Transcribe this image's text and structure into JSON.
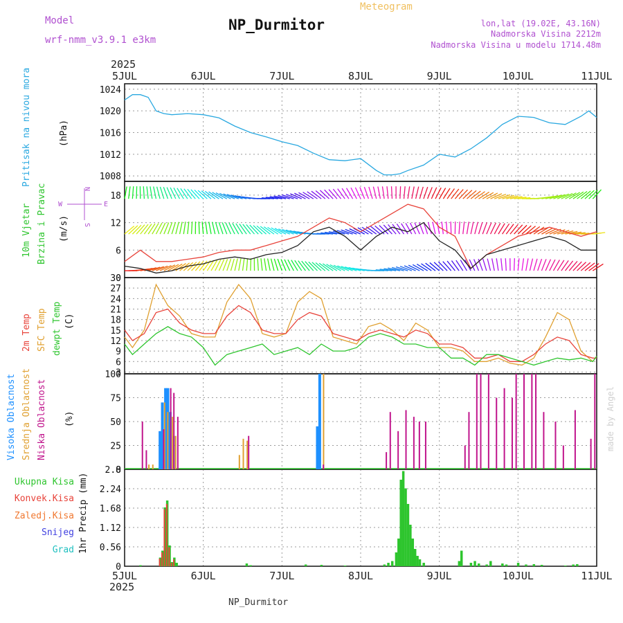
{
  "header": {
    "model_label": "Model",
    "model_value": "wrf-nmm_v3.9.1  e3km",
    "title": "NP_Durmitor",
    "subtitle": "Meteogram",
    "coords": "lon,lat (19.02E, 43.16N)",
    "altitude": "Nadmorska Visina 2212m",
    "model_altitude": "Nadmorska Visina u modelu 1714.48m",
    "year_top": "2025",
    "year_bottom": "2025",
    "footer": "NP_Durmitor",
    "credit": "made by Angel"
  },
  "colors": {
    "pressure": "#29a8e0",
    "temp2m": "#e8433a",
    "sfctemp": "#e0a030",
    "dewpt": "#2ec52e",
    "cloud_high": "#1e90ff",
    "cloud_mid": "#e0a030",
    "cloud_low": "#c0148c",
    "precip_total": "#2ec52e",
    "precip_conv": "#e8433a",
    "precip_frz": "#f07830",
    "snow": "#4040e0",
    "hail": "#20c0c0",
    "wind_speed": "#222222",
    "gust": "#e8433a"
  },
  "chart_data": [
    {
      "type": "line",
      "panel": "pressure",
      "ylabel_main": "Pritisak na nivou mora",
      "unit": "(hPa)",
      "x_labels": [
        "5JUL",
        "6JUL",
        "7JUL",
        "8JUL",
        "9JUL",
        "10JUL",
        "11JUL"
      ],
      "ylim": [
        1007,
        1025
      ],
      "yticks": [
        "1008",
        "1012",
        "1016",
        "1020",
        "1024"
      ],
      "series": [
        {
          "name": "Pritisak",
          "x": [
            0,
            0.1,
            0.2,
            0.3,
            0.4,
            0.5,
            0.6,
            0.8,
            1.0,
            1.2,
            1.4,
            1.6,
            1.8,
            2.0,
            2.2,
            2.4,
            2.6,
            2.8,
            3.0,
            3.2,
            3.3,
            3.4,
            3.5,
            3.6,
            3.8,
            4.0,
            4.2,
            4.4,
            4.6,
            4.8,
            5.0,
            5.2,
            5.4,
            5.6,
            5.8,
            5.9,
            6.0
          ],
          "values": [
            1022,
            1023,
            1023,
            1022.5,
            1020,
            1019.5,
            1019.3,
            1019.5,
            1019.3,
            1018.7,
            1017.2,
            1016,
            1015.2,
            1014.3,
            1013.6,
            1012.2,
            1011,
            1010.8,
            1011.2,
            1009,
            1008.2,
            1008.2,
            1008.4,
            1009,
            1010,
            1012,
            1011.5,
            1013,
            1015,
            1017.5,
            1019,
            1018.8,
            1017.8,
            1017.5,
            1019,
            1020,
            1018.8
          ]
        }
      ]
    },
    {
      "type": "line",
      "panel": "wind",
      "ylabel_main": "10m Vjetar",
      "ylabel_sub": "Brzina i Pravac",
      "unit": "(m/s)",
      "compass": {
        "n": "N",
        "s": "S",
        "e": "E",
        "w": "W"
      },
      "ylim": [
        0,
        21
      ],
      "yticks": [
        "0",
        "6",
        "12",
        "18"
      ],
      "series": [
        {
          "name": "Brzina",
          "x": [
            0,
            0.2,
            0.4,
            0.6,
            0.8,
            1.0,
            1.2,
            1.4,
            1.6,
            1.8,
            2.0,
            2.2,
            2.4,
            2.6,
            2.8,
            3.0,
            3.2,
            3.4,
            3.6,
            3.8,
            4.0,
            4.2,
            4.4,
            4.6,
            4.8,
            5.0,
            5.2,
            5.4,
            5.6,
            5.8,
            6.0
          ],
          "values": [
            2.5,
            2,
            1,
            1.5,
            2.5,
            3,
            4,
            4.5,
            4,
            5,
            5.5,
            7,
            10,
            11,
            9,
            6,
            9,
            11,
            10,
            12,
            8,
            6,
            2,
            5,
            6,
            7,
            8,
            9,
            8,
            6,
            6
          ]
        },
        {
          "name": "Udari",
          "x": [
            0,
            0.2,
            0.4,
            0.6,
            0.8,
            1.0,
            1.2,
            1.4,
            1.6,
            1.8,
            2.0,
            2.2,
            2.4,
            2.6,
            2.8,
            3.0,
            3.2,
            3.4,
            3.6,
            3.8,
            4.0,
            4.2,
            4.4,
            4.6,
            4.8,
            5.0,
            5.2,
            5.4,
            5.6,
            5.8,
            6.0
          ],
          "values": [
            3.5,
            6,
            3.5,
            3.5,
            4,
            4.5,
            5.5,
            6,
            6,
            7,
            8,
            9,
            11,
            13,
            12,
            10,
            12,
            14,
            16,
            15,
            11,
            9,
            2,
            5,
            7,
            9,
            10,
            11,
            10,
            9,
            10
          ]
        }
      ]
    },
    {
      "type": "line",
      "panel": "temperature",
      "labels": [
        "2m Temp",
        "SFC Temp",
        "dewpt Temp"
      ],
      "unit": "(C)",
      "ylim": [
        2.5,
        30
      ],
      "yticks": [
        "3",
        "6",
        "9",
        "12",
        "15",
        "18",
        "21",
        "24",
        "27",
        "30"
      ],
      "series": [
        {
          "name": "2m Temp",
          "x": [
            0,
            0.1,
            0.25,
            0.4,
            0.55,
            0.7,
            0.85,
            1.0,
            1.15,
            1.3,
            1.45,
            1.6,
            1.75,
            1.9,
            2.05,
            2.2,
            2.35,
            2.5,
            2.65,
            2.8,
            2.95,
            3.1,
            3.25,
            3.4,
            3.55,
            3.7,
            3.85,
            4.0,
            4.15,
            4.3,
            4.45,
            4.6,
            4.75,
            4.9,
            5.05,
            5.2,
            5.35,
            5.5,
            5.65,
            5.8,
            5.95,
            6.0
          ],
          "values": [
            15,
            12,
            14,
            20,
            21,
            17,
            15,
            14,
            14,
            19,
            22,
            20,
            15,
            14,
            14,
            18,
            20,
            19,
            14,
            13,
            12,
            14,
            15,
            14,
            13,
            15,
            14,
            11,
            11,
            10,
            7,
            7,
            8,
            6,
            6,
            8,
            11,
            13,
            12,
            8,
            7,
            7
          ]
        },
        {
          "name": "SFC Temp",
          "x": [
            0,
            0.1,
            0.25,
            0.4,
            0.55,
            0.7,
            0.85,
            1.0,
            1.15,
            1.3,
            1.45,
            1.6,
            1.75,
            1.9,
            2.05,
            2.2,
            2.35,
            2.5,
            2.65,
            2.8,
            2.95,
            3.1,
            3.25,
            3.4,
            3.55,
            3.7,
            3.85,
            4.0,
            4.15,
            4.3,
            4.45,
            4.6,
            4.75,
            4.9,
            5.05,
            5.2,
            5.35,
            5.5,
            5.65,
            5.8,
            5.95,
            6.0
          ],
          "values": [
            13,
            10,
            15,
            28,
            22,
            19,
            14,
            13,
            13,
            23,
            28,
            24,
            14,
            13,
            14,
            23,
            26,
            24,
            13,
            12,
            11,
            16,
            17,
            15,
            12,
            17,
            15,
            10,
            10,
            9,
            6,
            6,
            7,
            5.5,
            5,
            7,
            13,
            20,
            18,
            9,
            6,
            7.5
          ]
        },
        {
          "name": "dewpt Temp",
          "x": [
            0,
            0.1,
            0.25,
            0.4,
            0.55,
            0.7,
            0.85,
            1.0,
            1.15,
            1.3,
            1.45,
            1.6,
            1.75,
            1.9,
            2.05,
            2.2,
            2.35,
            2.5,
            2.65,
            2.8,
            2.95,
            3.1,
            3.25,
            3.4,
            3.55,
            3.7,
            3.85,
            4.0,
            4.15,
            4.3,
            4.45,
            4.6,
            4.75,
            4.9,
            5.05,
            5.2,
            5.35,
            5.5,
            5.65,
            5.8,
            5.95,
            6.0
          ],
          "values": [
            11,
            8,
            11,
            14,
            16,
            14,
            13,
            10,
            5,
            8,
            9,
            10,
            11,
            8,
            9,
            10,
            8,
            11,
            9,
            9,
            10,
            13,
            14,
            13,
            11,
            11,
            10,
            10,
            7,
            7,
            5,
            8,
            8,
            7,
            6,
            5,
            6,
            7,
            6.5,
            7,
            6,
            7.5
          ]
        }
      ]
    },
    {
      "type": "bar",
      "panel": "clouds",
      "labels": [
        "Visoka Oblacnost",
        "Srednja Oblacnost",
        "Niska Oblacnost"
      ],
      "unit": "(%)",
      "ylim": [
        0,
        100
      ],
      "yticks": [
        "0",
        "25",
        "50",
        "75",
        "100"
      ],
      "series": [
        {
          "name": "Visoka",
          "x": [
            0.45,
            0.48,
            0.52,
            0.55,
            0.58,
            0.62,
            2.45,
            2.48
          ],
          "values": [
            40,
            70,
            85,
            85,
            60,
            35,
            45,
            100
          ]
        },
        {
          "name": "Srednja",
          "x": [
            0.3,
            0.35,
            0.5,
            0.54,
            0.6,
            0.64,
            1.45,
            1.5,
            1.55,
            2.52
          ],
          "values": [
            5,
            5,
            70,
            60,
            55,
            35,
            15,
            32,
            30,
            100
          ]
        },
        {
          "name": "Niska",
          "x": [
            0.2,
            0.25,
            0.47,
            0.56,
            0.6,
            0.65,
            1.55,
            2.5,
            3.3,
            3.35,
            3.45,
            3.55,
            3.65,
            3.72,
            3.8,
            4.3,
            4.35,
            4.45,
            4.5,
            4.6,
            4.7,
            4.8,
            4.9,
            4.95,
            5.05,
            5.15,
            5.2,
            5.3,
            5.45,
            5.55,
            5.7,
            5.9,
            5.95
          ],
          "values": [
            50,
            20,
            42,
            85,
            80,
            55,
            35,
            5,
            18,
            60,
            40,
            62,
            55,
            50,
            50,
            25,
            60,
            100,
            100,
            100,
            75,
            85,
            75,
            100,
            100,
            100,
            100,
            60,
            50,
            25,
            62,
            32,
            100
          ]
        }
      ]
    },
    {
      "type": "bar",
      "panel": "precipitation",
      "labels": [
        "Ukupna Kisa",
        "Konvek.Kisa",
        "Zaledj.Kisa",
        "Snijeg",
        "Grad"
      ],
      "unit": "1hr Precip (mm)",
      "ylim": [
        0,
        2.8
      ],
      "yticks": [
        "0",
        "0.56",
        "1.12",
        "1.68",
        "2.24",
        "2.8"
      ],
      "series": [
        {
          "name": "Ukupna Kisa",
          "x": [
            0.2,
            0.45,
            0.48,
            0.51,
            0.54,
            0.57,
            0.6,
            0.63,
            0.66,
            1.55,
            1.6,
            2.3,
            2.5,
            2.8,
            3.3,
            3.35,
            3.4,
            3.45,
            3.48,
            3.51,
            3.54,
            3.57,
            3.6,
            3.63,
            3.66,
            3.69,
            3.72,
            3.75,
            3.8,
            4.25,
            4.28,
            4.4,
            4.45,
            4.5,
            4.6,
            4.65,
            4.8,
            4.85,
            5.0,
            5.1,
            5.2,
            5.3,
            5.6,
            5.7,
            5.75
          ],
          "values": [
            0.03,
            0.25,
            0.45,
            1.7,
            1.9,
            0.6,
            0.12,
            0.25,
            0.1,
            0.08,
            0.03,
            0.05,
            0.04,
            0.02,
            0.05,
            0.1,
            0.15,
            0.4,
            0.8,
            2.5,
            2.75,
            2.25,
            1.8,
            1.2,
            0.8,
            0.5,
            0.3,
            0.2,
            0.1,
            0.15,
            0.45,
            0.1,
            0.15,
            0.08,
            0.05,
            0.15,
            0.08,
            0.05,
            0.1,
            0.05,
            0.06,
            0.04,
            0.02,
            0.05,
            0.06
          ]
        },
        {
          "name": "Konvek.Kisa",
          "x": [
            0.45,
            0.48,
            0.51,
            0.54,
            0.57,
            0.6,
            0.63
          ],
          "values": [
            0.22,
            0.4,
            1.65,
            1.8,
            0.55,
            0.1,
            0.2
          ]
        }
      ]
    }
  ]
}
